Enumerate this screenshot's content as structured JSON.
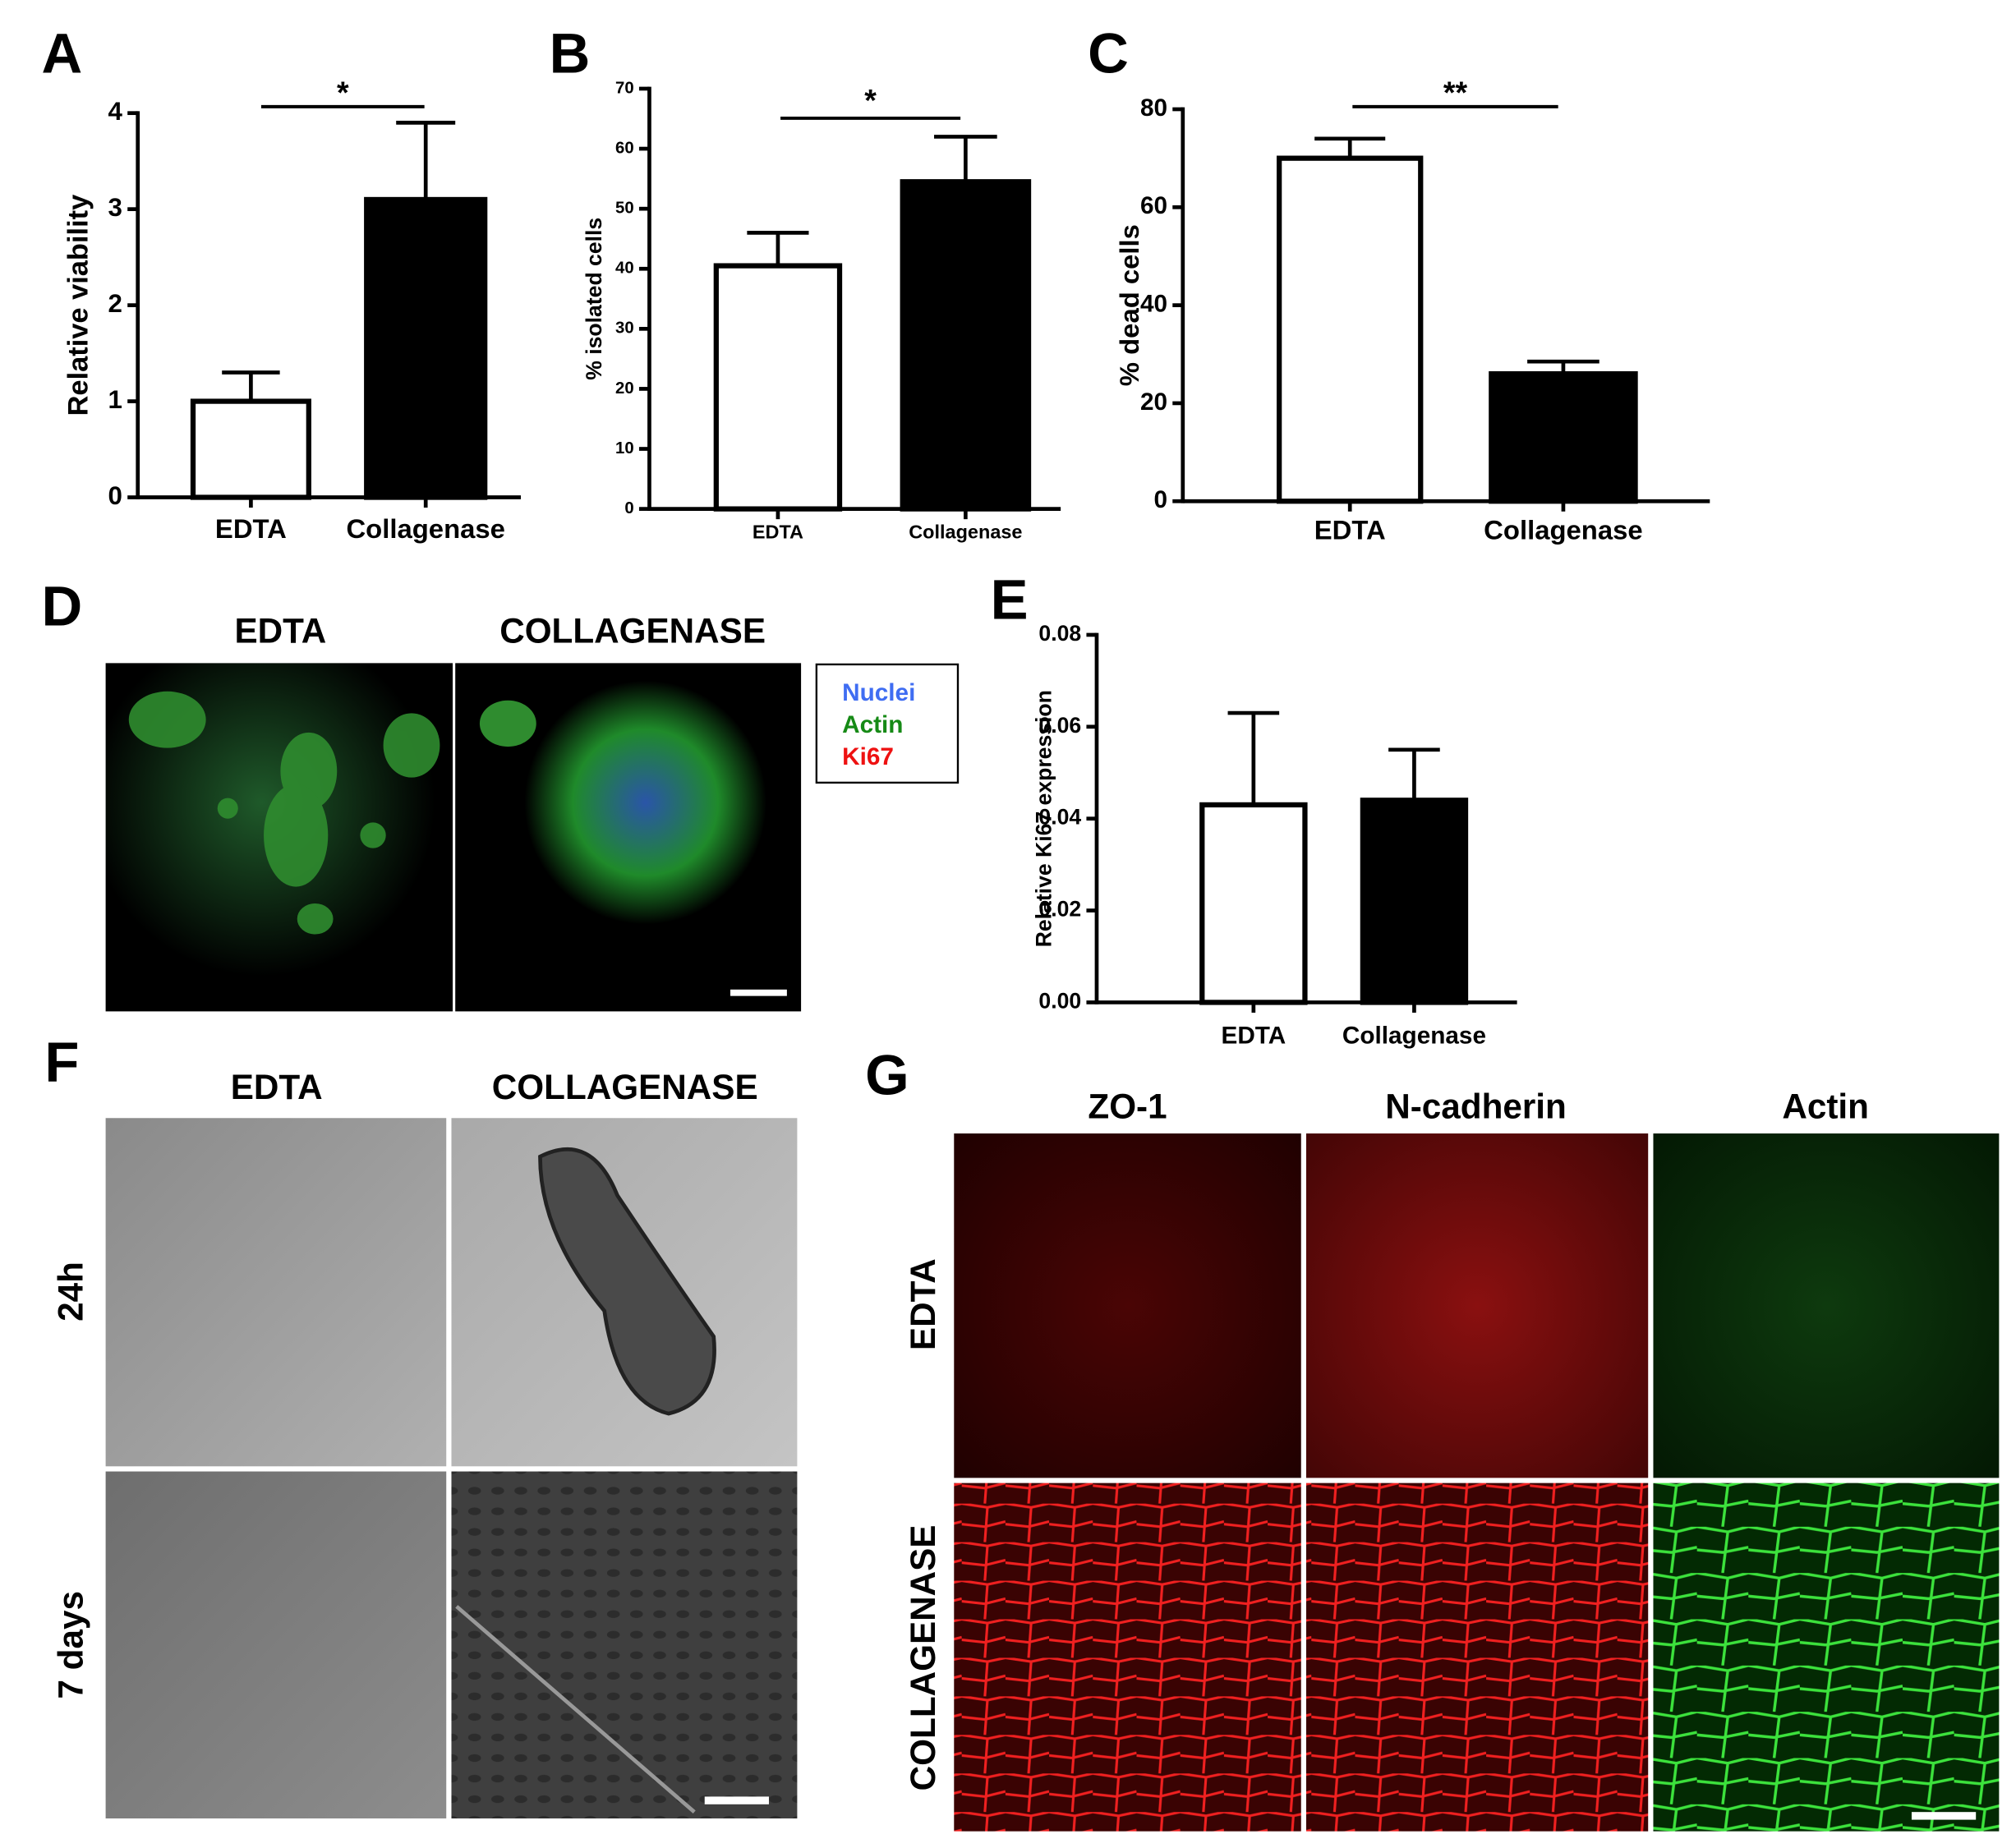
{
  "chart_data": [
    {
      "type": "bar",
      "panel": "A",
      "y_label": "Relative viability",
      "categories": [
        "EDTA",
        "Collagenase"
      ],
      "values": [
        1.0,
        3.1
      ],
      "errors": [
        0.3,
        0.8
      ],
      "colors": [
        "#ffffff",
        "#000000"
      ],
      "ylim": [
        0,
        4
      ],
      "yticks": [
        0,
        1,
        2,
        3,
        4
      ],
      "annotation": "*"
    },
    {
      "type": "bar",
      "panel": "B",
      "y_label": "% isolated cells",
      "categories": [
        "EDTA",
        "Collagenase"
      ],
      "values": [
        40.5,
        54.5
      ],
      "errors": [
        5.5,
        7.5
      ],
      "colors": [
        "#ffffff",
        "#000000"
      ],
      "ylim": [
        0,
        70
      ],
      "yticks": [
        0,
        10,
        20,
        30,
        40,
        50,
        60,
        70
      ],
      "annotation": "*"
    },
    {
      "type": "bar",
      "panel": "C",
      "y_label": "% dead cells",
      "categories": [
        "EDTA",
        "Collagenase"
      ],
      "values": [
        70,
        26
      ],
      "errors": [
        4,
        2.5
      ],
      "colors": [
        "#ffffff",
        "#000000"
      ],
      "ylim": [
        0,
        80
      ],
      "yticks": [
        0,
        20,
        40,
        60,
        80
      ],
      "annotation": "**"
    },
    {
      "type": "bar",
      "panel": "E",
      "y_label": "Relative Ki67 expression",
      "categories": [
        "EDTA",
        "Collagenase"
      ],
      "values": [
        0.043,
        0.044
      ],
      "errors": [
        0.02,
        0.011
      ],
      "colors": [
        "#ffffff",
        "#000000"
      ],
      "ylim": [
        0,
        0.08
      ],
      "yticks": [
        {
          "value": 0,
          "label": "0.00"
        },
        0.02,
        0.04,
        0.06,
        0.08
      ]
    }
  ],
  "panel_d": {
    "label": "D",
    "columns": [
      "EDTA",
      "COLLAGENASE"
    ],
    "legend": [
      {
        "name": "Nuclei",
        "color": "#3f6df2"
      },
      {
        "name": "Actin",
        "color": "#168a16"
      },
      {
        "name": "Ki67",
        "color": "#ee1111"
      }
    ]
  },
  "panel_f": {
    "label": "F",
    "columns": [
      "EDTA",
      "COLLAGENASE"
    ],
    "rows": [
      "24h",
      "7 days"
    ]
  },
  "panel_g": {
    "label": "G",
    "columns": [
      "ZO-1",
      "N-cadherin",
      "Actin"
    ],
    "rows": [
      "EDTA",
      "COLLAGENASE"
    ]
  }
}
